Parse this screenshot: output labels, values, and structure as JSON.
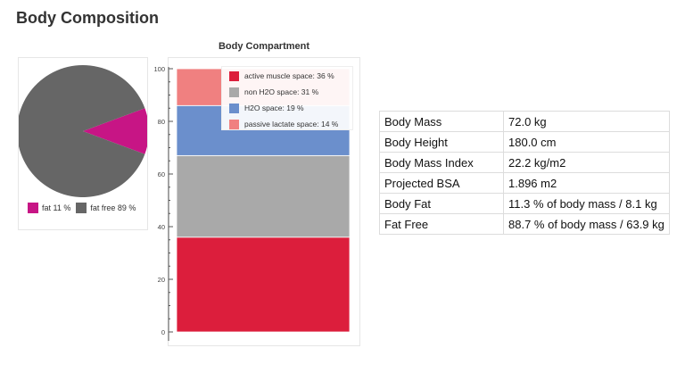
{
  "page": {
    "title": "Body Composition"
  },
  "chart_data": [
    {
      "type": "pie",
      "title": "",
      "slices": [
        {
          "label": "fat 11 %",
          "value": 11.3,
          "color": "#c71585"
        },
        {
          "label": "fat free 89 %",
          "value": 88.7,
          "color": "#666666"
        }
      ]
    },
    {
      "type": "bar",
      "stacked": true,
      "title": "Body Compartment",
      "xlabel": "",
      "ylabel": "",
      "ylim": [
        0,
        100
      ],
      "yticks": [
        "0",
        "20",
        "40",
        "60",
        "80",
        "100"
      ],
      "legend_position": "top-right",
      "series": [
        {
          "name": "active muscle space: 36 %",
          "value": 36,
          "color": "#dc1e3c"
        },
        {
          "name": "non H2O space: 31 %",
          "value": 31,
          "color": "#a9a9a9"
        },
        {
          "name": "H2O space: 19 %",
          "value": 19,
          "color": "#6b8fcc"
        },
        {
          "name": "passive lactate space: 14 %",
          "value": 14,
          "color": "#f08080"
        }
      ]
    }
  ],
  "table": {
    "rows": [
      {
        "label": "Body Mass",
        "value": "72.0 kg"
      },
      {
        "label": "Body Height",
        "value": "180.0 cm"
      },
      {
        "label": "Body Mass Index",
        "value": "22.2 kg/m2"
      },
      {
        "label": "Projected BSA",
        "value": "1.896 m2"
      },
      {
        "label": "Body Fat",
        "value": "11.3 % of body mass / 8.1 kg"
      },
      {
        "label": "Fat Free",
        "value": "88.7 % of body mass / 63.9 kg"
      }
    ]
  }
}
